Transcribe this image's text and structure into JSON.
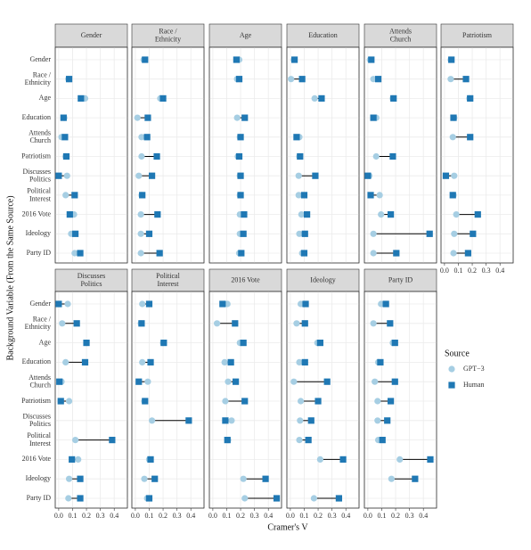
{
  "chart_data": {
    "type": "dumbbell",
    "x_label": "Cramer's V",
    "y_label": "Background Variable (From the Same Source)",
    "legend_title": "Source",
    "categories": [
      "Gender",
      "Race /\nEthnicity",
      "Age",
      "Education",
      "Attends\nChurch",
      "Patriotism",
      "Discusses\nPolitics",
      "Political\nInterest",
      "2016 Vote",
      "Ideology",
      "Party ID"
    ],
    "series": [
      {
        "name": "GPT−3",
        "color": "#a6cee3",
        "marker": "circle"
      },
      {
        "name": "Human",
        "color": "#1f78b4",
        "marker": "square"
      }
    ],
    "xlim": [
      -0.025,
      0.495
    ],
    "xticks": [
      {
        "value": 0,
        "label": "0.0"
      },
      0.1,
      0.2,
      0.3,
      0.4
    ],
    "grid": true,
    "facets": [
      {
        "title": "Gender",
        "values": [
          [
            null,
            0.07,
            0.19,
            0.04,
            0.02,
            0.05,
            0.06,
            0.05,
            0.11,
            0.09,
            0.115
          ],
          [
            null,
            0.075,
            0.16,
            0.035,
            0.045,
            0.055,
            0.0,
            0.115,
            0.08,
            0.12,
            0.155
          ]
        ]
      },
      {
        "title": "Race /\nEthnicity",
        "values": [
          [
            0.06,
            null,
            0.18,
            0.015,
            0.045,
            0.045,
            0.025,
            0.045,
            0.04,
            0.04,
            0.04
          ],
          [
            0.07,
            null,
            0.2,
            0.09,
            0.085,
            0.155,
            0.12,
            0.05,
            0.16,
            0.1,
            0.175
          ]
        ]
      },
      {
        "title": "Age",
        "values": [
          [
            0.19,
            0.175,
            null,
            0.175,
            0.195,
            0.18,
            0.195,
            0.195,
            0.195,
            0.195,
            0.19
          ],
          [
            0.17,
            0.19,
            null,
            0.23,
            0.2,
            0.19,
            0.2,
            0.2,
            0.225,
            0.22,
            0.205
          ]
        ]
      },
      {
        "title": "Education",
        "values": [
          [
            0.025,
            0.005,
            0.175,
            null,
            0.065,
            0.065,
            0.06,
            0.06,
            0.08,
            0.065,
            0.085
          ],
          [
            0.03,
            0.085,
            0.225,
            null,
            0.045,
            0.07,
            0.18,
            0.1,
            0.12,
            0.105,
            0.1
          ]
        ]
      },
      {
        "title": "Attends\nChurch",
        "values": [
          [
            0.015,
            0.04,
            0.18,
            0.06,
            null,
            0.06,
            0.01,
            0.085,
            0.095,
            0.04,
            0.04
          ],
          [
            0.025,
            0.075,
            0.185,
            0.04,
            null,
            0.18,
            0.0,
            0.02,
            0.165,
            0.445,
            0.205
          ]
        ]
      },
      {
        "title": "Patriotism",
        "values": [
          [
            0.045,
            0.045,
            0.18,
            0.07,
            0.06,
            null,
            0.07,
            0.065,
            0.085,
            0.07,
            0.065
          ],
          [
            0.05,
            0.155,
            0.185,
            0.065,
            0.185,
            null,
            0.01,
            0.06,
            0.24,
            0.205,
            0.17
          ]
        ]
      },
      {
        "title": "Discusses\nPolitics",
        "values": [
          [
            0.065,
            0.025,
            0.2,
            0.05,
            0.02,
            0.075,
            null,
            0.12,
            0.14,
            0.075,
            0.07
          ],
          [
            0.0,
            0.13,
            0.2,
            0.19,
            0.005,
            0.015,
            null,
            0.385,
            0.095,
            0.155,
            0.155
          ]
        ]
      },
      {
        "title": "Political\nInterest",
        "values": [
          [
            0.05,
            0.04,
            0.2,
            0.05,
            0.09,
            0.065,
            0.12,
            null,
            0.1,
            0.065,
            0.085
          ],
          [
            0.1,
            0.045,
            0.205,
            0.11,
            0.025,
            0.07,
            0.385,
            null,
            0.11,
            0.14,
            0.1
          ]
        ]
      },
      {
        "title": "2016 Vote",
        "values": [
          [
            0.105,
            0.03,
            0.195,
            0.085,
            0.11,
            0.09,
            0.135,
            0.11,
            null,
            0.22,
            0.23
          ],
          [
            0.07,
            0.16,
            0.22,
            0.13,
            0.165,
            0.23,
            0.09,
            0.105,
            null,
            0.38,
            0.46
          ]
        ]
      },
      {
        "title": "Ideology",
        "values": [
          [
            0.075,
            0.045,
            0.195,
            0.065,
            0.025,
            0.075,
            0.07,
            0.065,
            0.215,
            null,
            0.17
          ],
          [
            0.11,
            0.105,
            0.215,
            0.105,
            0.265,
            0.2,
            0.15,
            0.13,
            0.38,
            null,
            0.35
          ]
        ]
      },
      {
        "title": "Party ID",
        "values": [
          [
            0.095,
            0.04,
            0.18,
            0.075,
            0.05,
            0.07,
            0.07,
            0.075,
            0.23,
            0.17,
            null
          ],
          [
            0.13,
            0.16,
            0.195,
            0.09,
            0.195,
            0.165,
            0.14,
            0.105,
            0.45,
            0.34,
            null
          ]
        ]
      }
    ]
  }
}
